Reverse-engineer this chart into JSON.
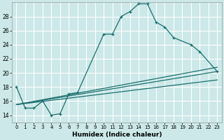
{
  "xlabel": "Humidex (Indice chaleur)",
  "bg_color": "#cce8e8",
  "grid_color": "#ffffff",
  "line_color": "#1a6e6e",
  "xlim": [
    -0.5,
    23.5
  ],
  "ylim": [
    13.0,
    30.0
  ],
  "xticks": [
    0,
    1,
    2,
    3,
    4,
    5,
    6,
    7,
    8,
    9,
    10,
    11,
    12,
    13,
    14,
    15,
    16,
    17,
    18,
    19,
    20,
    21,
    22,
    23
  ],
  "yticks": [
    14,
    16,
    18,
    20,
    22,
    24,
    26,
    28
  ],
  "main_curve": {
    "x": [
      0,
      1,
      2,
      3,
      4,
      5,
      6,
      7,
      10,
      11,
      12,
      13,
      14,
      15,
      16,
      17,
      18,
      20,
      21,
      23
    ],
    "y": [
      18.0,
      15.0,
      15.0,
      16.0,
      14.0,
      14.2,
      17.0,
      17.2,
      25.5,
      25.5,
      28.0,
      28.7,
      29.8,
      29.8,
      27.2,
      26.5,
      25.0,
      24.0,
      23.0,
      20.2
    ]
  },
  "straight_lines": [
    {
      "x": [
        0,
        23
      ],
      "y": [
        15.5,
        20.2
      ]
    },
    {
      "x": [
        0,
        23
      ],
      "y": [
        15.5,
        19.0
      ]
    },
    {
      "x": [
        0,
        23
      ],
      "y": [
        15.5,
        20.8
      ]
    }
  ]
}
